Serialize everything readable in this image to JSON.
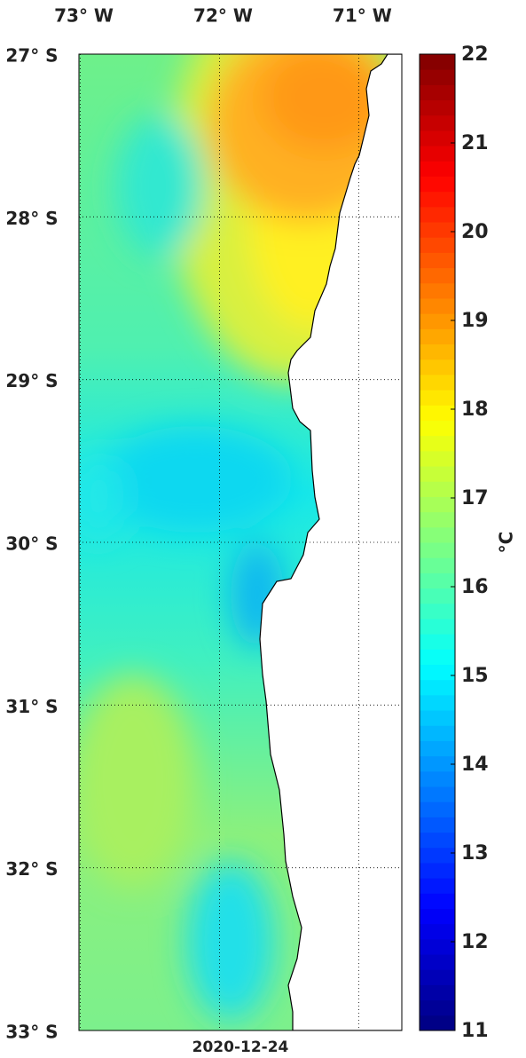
{
  "map": {
    "date": "2020-12-24",
    "xlim": [
      -73.01,
      -70.69
    ],
    "ylim": [
      -33,
      -27
    ],
    "lon_ticks": [
      {
        "value": -73,
        "label": "73° W"
      },
      {
        "value": -72,
        "label": "72° W"
      },
      {
        "value": -71,
        "label": "71° W"
      }
    ],
    "lat_ticks": [
      {
        "value": -27,
        "label": "27° S"
      },
      {
        "value": -28,
        "label": "28° S"
      },
      {
        "value": -29,
        "label": "29° S"
      },
      {
        "value": -30,
        "label": "30° S"
      },
      {
        "value": -31,
        "label": "31° S"
      },
      {
        "value": -32,
        "label": "32° S"
      },
      {
        "value": -33,
        "label": "33° S"
      }
    ]
  },
  "colorbar": {
    "unit": "°C",
    "lim": [
      11,
      22
    ],
    "ticks": [
      11,
      12,
      13,
      14,
      15,
      16,
      17,
      18,
      19,
      20,
      21,
      22
    ]
  }
}
